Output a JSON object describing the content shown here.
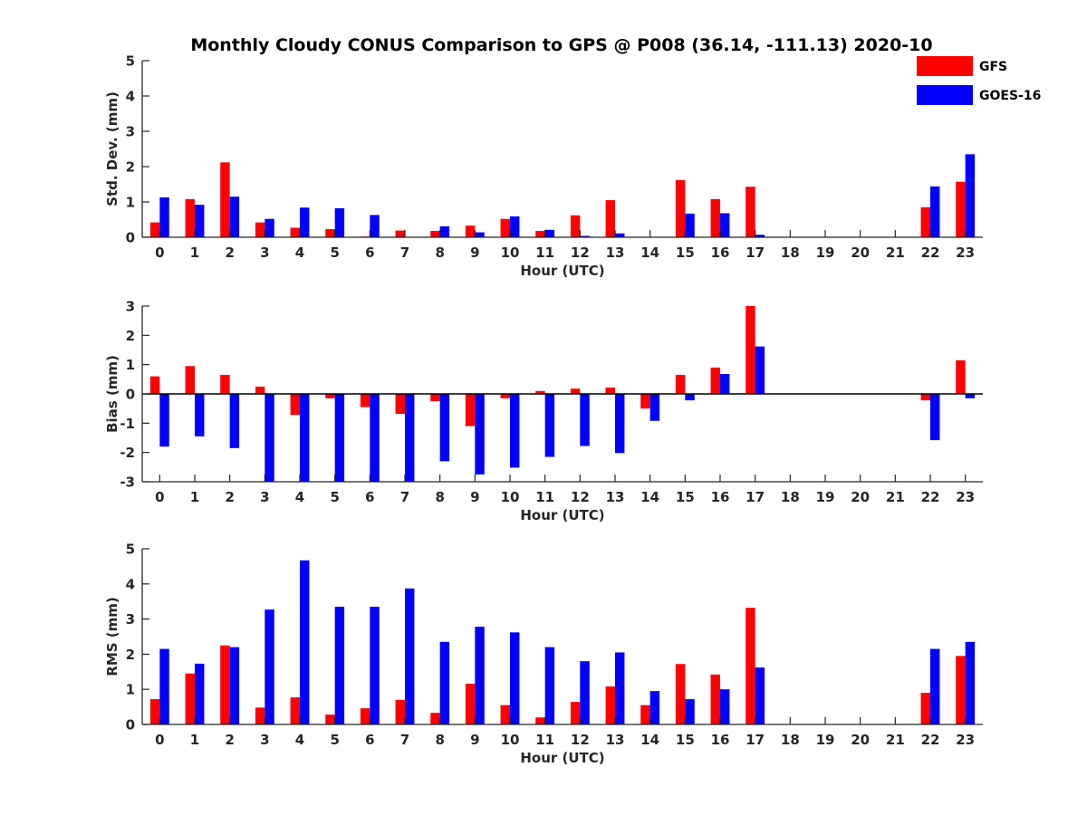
{
  "title": "Monthly Cloudy CONUS Comparison to GPS @ P008 (36.14, -111.13) 2020-10",
  "legend": [
    {
      "name": "GFS",
      "color": "#ff0000"
    },
    {
      "name": "GOES-16",
      "color": "#0000ff"
    }
  ],
  "chart_data": [
    {
      "type": "bar",
      "ylabel": "Std. Dev. (mm)",
      "xlabel": "Hour (UTC)",
      "categories": [
        "0",
        "1",
        "2",
        "3",
        "4",
        "5",
        "6",
        "7",
        "8",
        "9",
        "10",
        "11",
        "12",
        "13",
        "14",
        "15",
        "16",
        "17",
        "18",
        "19",
        "20",
        "21",
        "22",
        "23"
      ],
      "ylim": [
        0,
        5
      ],
      "yticks": [
        "0",
        "1",
        "2",
        "3",
        "4",
        "5"
      ],
      "series": [
        {
          "name": "GFS",
          "color": "#ff0000",
          "values": [
            0.42,
            1.08,
            2.12,
            0.42,
            0.27,
            0.23,
            0.02,
            0.19,
            0.18,
            0.33,
            0.52,
            0.18,
            0.62,
            1.05,
            0,
            1.62,
            1.08,
            1.43,
            0,
            0,
            0,
            0,
            0.85,
            1.57
          ]
        },
        {
          "name": "GOES-16",
          "color": "#0000ff",
          "values": [
            1.13,
            0.92,
            1.15,
            0.52,
            0.84,
            0.82,
            0.63,
            0,
            0.31,
            0.14,
            0.59,
            0.21,
            0.04,
            0.11,
            0,
            0.67,
            0.68,
            0.07,
            0,
            0,
            0,
            0,
            1.44,
            2.35
          ]
        }
      ]
    },
    {
      "type": "bar",
      "ylabel": "Bias (mm)",
      "xlabel": "Hour (UTC)",
      "categories": [
        "0",
        "1",
        "2",
        "3",
        "4",
        "5",
        "6",
        "7",
        "8",
        "9",
        "10",
        "11",
        "12",
        "13",
        "14",
        "15",
        "16",
        "17",
        "18",
        "19",
        "20",
        "21",
        "22",
        "23"
      ],
      "ylim": [
        -3,
        3
      ],
      "yticks": [
        "-3",
        "-2",
        "-1",
        "0",
        "1",
        "2",
        "3"
      ],
      "zero_line": true,
      "series": [
        {
          "name": "GFS",
          "color": "#ff0000",
          "values": [
            0.6,
            0.95,
            0.65,
            0.25,
            -0.72,
            -0.15,
            -0.45,
            -0.68,
            -0.25,
            -1.1,
            -0.15,
            0.1,
            0.18,
            0.22,
            -0.5,
            0.65,
            0.9,
            3.0,
            0,
            0,
            0,
            0,
            -0.22,
            1.15
          ]
        },
        {
          "name": "GOES-16",
          "color": "#0000ff",
          "values": [
            -1.8,
            -1.45,
            -1.85,
            -3.0,
            -3.0,
            -3.0,
            -3.0,
            -3.0,
            -2.3,
            -2.75,
            -2.52,
            -2.15,
            -1.78,
            -2.02,
            -0.92,
            -0.22,
            0.68,
            1.62,
            0,
            0,
            0,
            0,
            -1.58,
            -0.15
          ]
        }
      ]
    },
    {
      "type": "bar",
      "ylabel": "RMS (mm)",
      "xlabel": "Hour (UTC)",
      "categories": [
        "0",
        "1",
        "2",
        "3",
        "4",
        "5",
        "6",
        "7",
        "8",
        "9",
        "10",
        "11",
        "12",
        "13",
        "14",
        "15",
        "16",
        "17",
        "18",
        "19",
        "20",
        "21",
        "22",
        "23"
      ],
      "ylim": [
        0,
        5
      ],
      "yticks": [
        "0",
        "1",
        "2",
        "3",
        "4",
        "5"
      ],
      "series": [
        {
          "name": "GFS",
          "color": "#ff0000",
          "values": [
            0.72,
            1.45,
            2.25,
            0.48,
            0.77,
            0.28,
            0.46,
            0.7,
            0.33,
            1.16,
            0.55,
            0.2,
            0.64,
            1.08,
            0.55,
            1.72,
            1.42,
            3.32,
            0,
            0,
            0,
            0,
            0.9,
            1.95
          ]
        },
        {
          "name": "GOES-16",
          "color": "#0000ff",
          "values": [
            2.15,
            1.73,
            2.2,
            3.27,
            4.67,
            3.35,
            3.35,
            3.87,
            2.35,
            2.78,
            2.62,
            2.2,
            1.8,
            2.05,
            0.95,
            0.72,
            1.0,
            1.62,
            0,
            0,
            0,
            0,
            2.15,
            2.35
          ]
        }
      ]
    }
  ]
}
